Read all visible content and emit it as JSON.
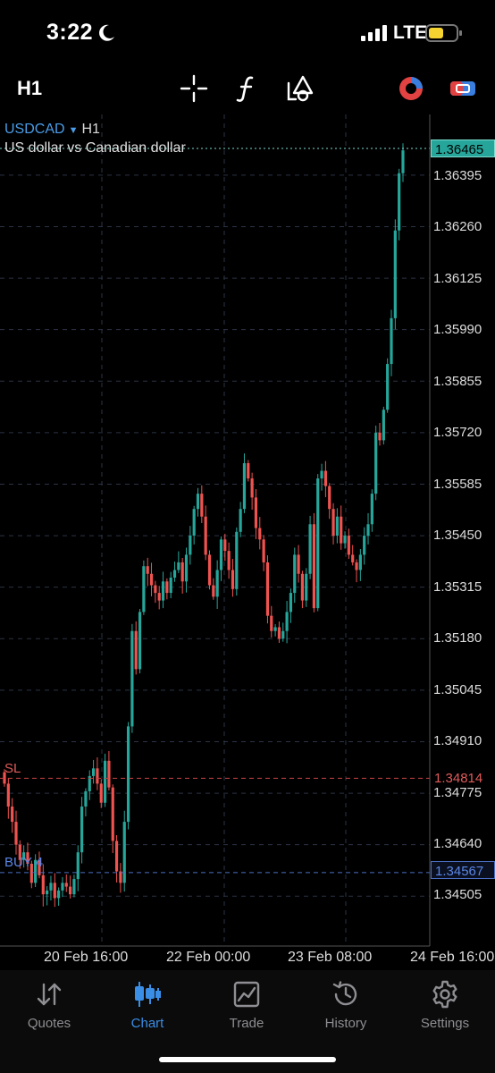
{
  "status_bar": {
    "time": "3:22",
    "network": "LTE",
    "icons": [
      "moon-icon",
      "cellular-signal-icon",
      "battery-icon"
    ],
    "battery_color": "#f5d330"
  },
  "toolbar": {
    "timeframe": "H1",
    "icons": [
      "crosshair-icon",
      "indicators-icon",
      "objects-icon",
      "chart-type-icon",
      "trade-toggle-icon"
    ]
  },
  "symbol": {
    "name": "USDCAD",
    "arrow": "▼",
    "timeframe": "H1",
    "description": "US dollar  vs Canadian dollar"
  },
  "colors": {
    "bull": "#26a69a",
    "bear": "#ef5350",
    "grid": "#2b3344",
    "sl_line": "#c94444",
    "buy_line": "#4a6fc4",
    "active_tab": "#3a8ee6"
  },
  "chart_data": {
    "type": "candlestick",
    "price_axis": [
      "1.36395",
      "1.36260",
      "1.36125",
      "1.35990",
      "1.35855",
      "1.35720",
      "1.35585",
      "1.35450",
      "1.35315",
      "1.35180",
      "1.35045",
      "1.34910",
      "1.34775",
      "1.34640",
      "1.34505"
    ],
    "time_axis": [
      "20 Feb 16:00",
      "22 Feb 00:00",
      "23 Feb 08:00",
      "24 Feb 16:00"
    ],
    "ylim": [
      1.3446,
      1.365
    ],
    "current_price": "1.36465",
    "levels": [
      {
        "label": "SL",
        "price": "1.34814"
      },
      {
        "label": "BUY 4",
        "price": "1.34567"
      }
    ],
    "closes": [
      1.348,
      1.3474,
      1.347,
      1.3464,
      1.346,
      1.3462,
      1.3459,
      1.3454,
      1.346,
      1.3456,
      1.3451,
      1.3452,
      1.3454,
      1.345,
      1.3452,
      1.3454,
      1.3453,
      1.3451,
      1.3455,
      1.3462,
      1.3474,
      1.3478,
      1.3482,
      1.3484,
      1.348,
      1.3475,
      1.3486,
      1.3479,
      1.3465,
      1.3457,
      1.3454,
      1.347,
      1.3495,
      1.352,
      1.351,
      1.3525,
      1.3537,
      1.3535,
      1.3532,
      1.353,
      1.3528,
      1.3533,
      1.353,
      1.3534,
      1.3536,
      1.3538,
      1.3533,
      1.354,
      1.3545,
      1.3552,
      1.3556,
      1.355,
      1.354,
      1.3532,
      1.3529,
      1.3536,
      1.3544,
      1.3541,
      1.3536,
      1.3531,
      1.3546,
      1.3552,
      1.3564,
      1.356,
      1.3555,
      1.3547,
      1.3544,
      1.3538,
      1.3524,
      1.352,
      1.3521,
      1.3518,
      1.352,
      1.3525,
      1.353,
      1.354,
      1.3535,
      1.3528,
      1.3535,
      1.3548,
      1.3526,
      1.356,
      1.3562,
      1.3558,
      1.3552,
      1.3545,
      1.355,
      1.3543,
      1.3545,
      1.354,
      1.3538,
      1.3536,
      1.354,
      1.3545,
      1.3548,
      1.3556,
      1.3572,
      1.357,
      1.3578,
      1.359,
      1.3602,
      1.3625,
      1.364,
      1.3646
    ],
    "x_start": 5,
    "x_step": 4.33
  },
  "tabs": [
    {
      "id": "quotes",
      "label": "Quotes",
      "icon": "quotes-arrows-icon",
      "active": false
    },
    {
      "id": "chart",
      "label": "Chart",
      "icon": "candlestick-icon",
      "active": true
    },
    {
      "id": "trade",
      "label": "Trade",
      "icon": "trade-chart-icon",
      "active": false
    },
    {
      "id": "history",
      "label": "History",
      "icon": "history-clock-icon",
      "active": false
    },
    {
      "id": "settings",
      "label": "Settings",
      "icon": "gear-icon",
      "active": false
    }
  ]
}
